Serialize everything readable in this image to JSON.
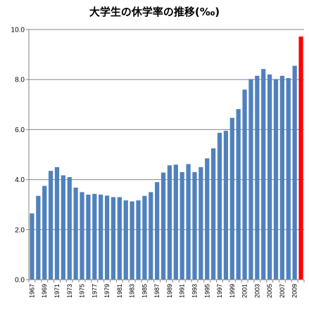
{
  "title": "大学生の休学率の推移(‰)",
  "colors": {
    "bar": "#4F81BD",
    "highlight": "#FF0000",
    "grid": "#868686",
    "axis": "#868686"
  },
  "chart_data": {
    "type": "bar",
    "title": "大学生の休学率の推移(‰)",
    "xlabel": "",
    "ylabel": "",
    "ylim": [
      0,
      10
    ],
    "yticks": [
      "0.0",
      "2.0",
      "4.0",
      "6.0",
      "8.0",
      "10.0"
    ],
    "grid": true,
    "legend": "none",
    "x_tick_labels": [
      "1967",
      "1969",
      "1971",
      "1973",
      "1975",
      "1977",
      "1979",
      "1981",
      "1983",
      "1985",
      "1987",
      "1989",
      "1991",
      "1993",
      "1995",
      "1997",
      "1999",
      "2001",
      "2003",
      "2005",
      "2007",
      "2009"
    ],
    "categories": [
      "1967",
      "1968",
      "1969",
      "1970",
      "1971",
      "1972",
      "1973",
      "1974",
      "1975",
      "1976",
      "1977",
      "1978",
      "1979",
      "1980",
      "1981",
      "1982",
      "1983",
      "1984",
      "1985",
      "1986",
      "1987",
      "1988",
      "1989",
      "1990",
      "1991",
      "1992",
      "1993",
      "1994",
      "1995",
      "1996",
      "1997",
      "1998",
      "1999",
      "2000",
      "2001",
      "2002",
      "2003",
      "2004",
      "2005",
      "2006",
      "2007",
      "2008",
      "2009",
      "2010"
    ],
    "values": [
      2.65,
      3.35,
      3.75,
      4.35,
      4.5,
      4.17,
      4.1,
      3.68,
      3.5,
      3.4,
      3.43,
      3.4,
      3.36,
      3.3,
      3.3,
      3.17,
      3.13,
      3.17,
      3.35,
      3.5,
      3.9,
      4.28,
      4.57,
      4.6,
      4.3,
      4.62,
      4.3,
      4.5,
      4.85,
      5.25,
      5.87,
      5.95,
      6.47,
      6.82,
      7.6,
      8.02,
      8.15,
      8.42,
      8.2,
      8.02,
      8.15,
      8.06,
      8.55,
      9.72
    ],
    "highlight_index": 43
  }
}
